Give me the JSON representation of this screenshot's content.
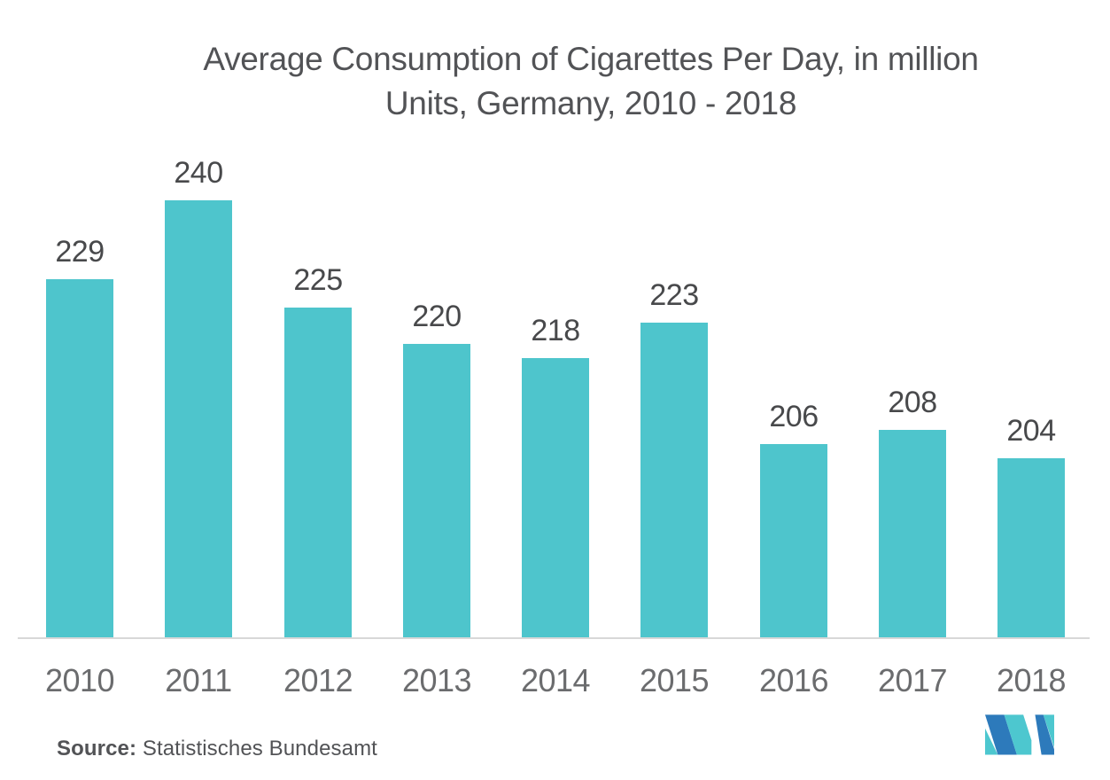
{
  "header": {
    "title_lines": [
      "Average Consumption of Cigarettes Per Day, in million",
      "Units, Germany, 2010 - 2018"
    ]
  },
  "chart_data": {
    "type": "bar",
    "title": "Average Consumption of Cigarettes Per Day, in million Units, Germany, 2010 - 2018",
    "categories": [
      "2010",
      "2011",
      "2012",
      "2013",
      "2014",
      "2015",
      "2016",
      "2017",
      "2018"
    ],
    "values": [
      229,
      240,
      225,
      220,
      218,
      223,
      206,
      208,
      204
    ],
    "xlabel": "",
    "ylabel": "",
    "ylim": [
      179,
      242
    ],
    "grid": "off",
    "legend": "none",
    "y_axis_visible": false,
    "data_labels": "above-bars",
    "bar_color": "#4ec5cc",
    "label_color": "#48494b",
    "axis_line_color": "#d8d8d8"
  },
  "footer": {
    "source_label": "Source:",
    "source_text": "Statistisches Bundesamt"
  },
  "logo": {
    "name": "mordor-intelligence-logo",
    "colors": {
      "blue": "#2d7abb",
      "teal": "#4dc7cf"
    }
  }
}
